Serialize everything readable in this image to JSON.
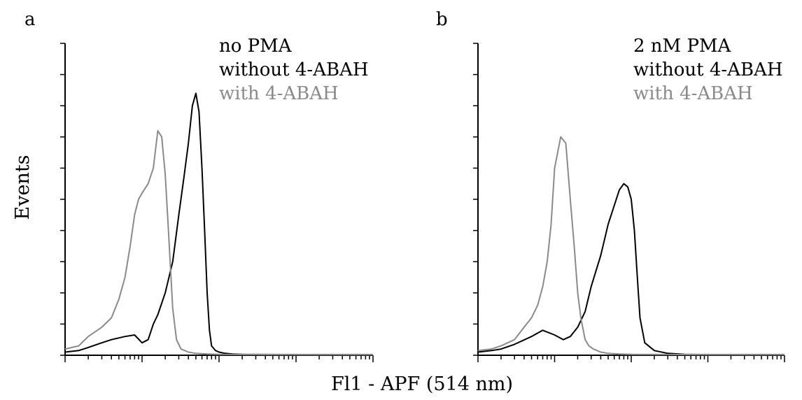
{
  "figure": {
    "ylabel": "Events",
    "xlabel": "Fl1 - APF (514 nm)"
  },
  "chart_data": [
    {
      "type": "line",
      "panel": "a",
      "legend": [
        "no PMA",
        "without 4-ABAH",
        "with 4-ABAH"
      ],
      "xlabel": "Fl1 - APF (514 nm)",
      "ylabel": "Events",
      "xscale": "log",
      "xlim": [
        1,
        10000
      ],
      "ylim": [
        0,
        100
      ],
      "y_major_ticks": 10,
      "grid": false,
      "legend_position": "top-right",
      "colors": {
        "without 4-ABAH": "#000000",
        "with 4-ABAH": "#8a8a8a"
      },
      "series": [
        {
          "name": "without 4-ABAH",
          "color": "#000000",
          "x": [
            1,
            1.5,
            2,
            3,
            4,
            6,
            8,
            10,
            12,
            14,
            16,
            20,
            25,
            30,
            35,
            40,
            45,
            50,
            55,
            60,
            65,
            70,
            75,
            80,
            90,
            100,
            120,
            150,
            200,
            1000,
            10000
          ],
          "y": [
            1,
            1.5,
            2.5,
            4,
            5,
            6,
            6.5,
            4,
            5,
            10,
            13,
            20,
            30,
            45,
            57,
            68,
            80,
            84,
            78,
            60,
            40,
            20,
            8,
            3,
            1.5,
            1,
            0.6,
            0.4,
            0.3,
            0.2,
            0.2
          ]
        },
        {
          "name": "with 4-ABAH",
          "color": "#8a8a8a",
          "x": [
            1,
            1.5,
            2,
            3,
            4,
            5,
            6,
            7,
            8,
            9,
            10,
            12,
            14,
            16,
            18,
            20,
            22,
            25,
            28,
            32,
            40,
            50,
            70,
            100,
            1000,
            10000
          ],
          "y": [
            2,
            3,
            6,
            9,
            12,
            18,
            25,
            35,
            45,
            50,
            52,
            55,
            60,
            72,
            70,
            58,
            40,
            15,
            5,
            2,
            1,
            0.6,
            0.4,
            0.3,
            0.2,
            0.2
          ]
        }
      ]
    },
    {
      "type": "line",
      "panel": "b",
      "legend": [
        "2 nM PMA",
        "without 4-ABAH",
        "with 4-ABAH"
      ],
      "xlabel": "Fl1 - APF (514 nm)",
      "ylabel": "Events",
      "xscale": "log",
      "xlim": [
        1,
        10000
      ],
      "ylim": [
        0,
        100
      ],
      "y_major_ticks": 10,
      "grid": false,
      "legend_position": "top-right",
      "colors": {
        "without 4-ABAH": "#000000",
        "with 4-ABAH": "#8a8a8a"
      },
      "series": [
        {
          "name": "without 4-ABAH",
          "color": "#000000",
          "x": [
            1,
            1.5,
            2,
            3,
            5,
            7,
            10,
            13,
            16,
            20,
            25,
            30,
            40,
            50,
            60,
            70,
            80,
            90,
            100,
            110,
            120,
            130,
            150,
            200,
            300,
            500,
            1000,
            10000
          ],
          "y": [
            1,
            1.5,
            2,
            3.5,
            6,
            8,
            6.5,
            5,
            6,
            9,
            14,
            22,
            32,
            42,
            48,
            53,
            55,
            54,
            50,
            40,
            25,
            12,
            4,
            1.5,
            0.6,
            0.3,
            0.2,
            0.2
          ]
        },
        {
          "name": "with 4-ABAH",
          "color": "#8a8a8a",
          "x": [
            1,
            1.5,
            2,
            3,
            4,
            5,
            6,
            7,
            8,
            9,
            10,
            12,
            14,
            16,
            18,
            20,
            22,
            25,
            28,
            32,
            40,
            50,
            70,
            100,
            1000,
            10000
          ],
          "y": [
            1.5,
            2,
            3,
            5,
            9,
            12,
            16,
            22,
            30,
            42,
            60,
            70,
            68,
            50,
            35,
            20,
            12,
            5,
            3,
            2,
            1,
            0.6,
            0.4,
            0.3,
            0.2,
            0.2
          ]
        }
      ]
    }
  ]
}
